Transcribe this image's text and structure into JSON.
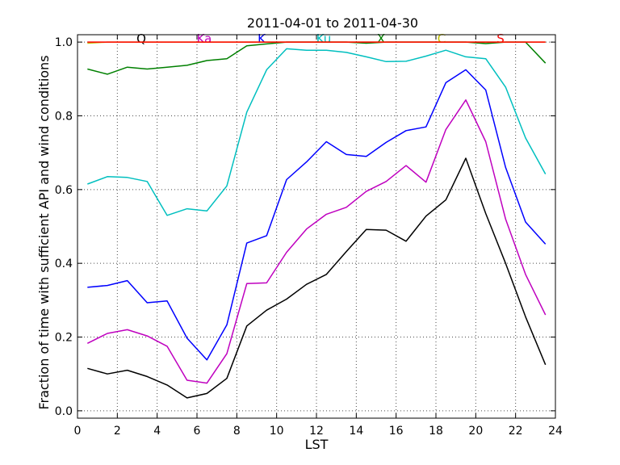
{
  "chart_data": {
    "type": "line",
    "title": "2011-04-01 to 2011-04-30",
    "xlabel": "LST",
    "ylabel": "Fraction of time with sufficient API and wind conditions",
    "xlim": [
      0,
      24
    ],
    "ylim": [
      -0.02,
      1.02
    ],
    "xticks": [
      0,
      2,
      4,
      6,
      8,
      10,
      12,
      14,
      16,
      18,
      20,
      22,
      24
    ],
    "yticks": [
      0.0,
      0.2,
      0.4,
      0.6,
      0.8,
      1.0
    ],
    "grid": true,
    "legend_placement": "top",
    "x": [
      0.5,
      1.5,
      2.5,
      3.5,
      4.5,
      5.5,
      6.5,
      7.5,
      8.5,
      9.5,
      10.5,
      11.5,
      12.5,
      13.5,
      14.5,
      15.5,
      16.5,
      17.5,
      18.5,
      19.5,
      20.5,
      21.5,
      22.5,
      23.5
    ],
    "series": [
      {
        "name": "Q",
        "color": "#000000",
        "values": [
          0.115,
          0.1,
          0.11,
          0.093,
          0.07,
          0.035,
          0.047,
          0.088,
          0.23,
          0.273,
          0.303,
          0.343,
          0.37,
          0.432,
          0.492,
          0.49,
          0.46,
          0.528,
          0.572,
          0.685,
          0.535,
          0.4,
          0.255,
          0.125
        ]
      },
      {
        "name": "Ka",
        "color": "#bf00bf",
        "values": [
          0.183,
          0.21,
          0.22,
          0.203,
          0.175,
          0.083,
          0.075,
          0.155,
          0.345,
          0.347,
          0.43,
          0.493,
          0.533,
          0.552,
          0.595,
          0.622,
          0.665,
          0.62,
          0.763,
          0.843,
          0.73,
          0.52,
          0.37,
          0.26
        ]
      },
      {
        "name": "K",
        "color": "#0000ff",
        "values": [
          0.335,
          0.34,
          0.353,
          0.293,
          0.298,
          0.197,
          0.138,
          0.233,
          0.455,
          0.475,
          0.627,
          0.675,
          0.73,
          0.695,
          0.69,
          0.728,
          0.76,
          0.77,
          0.89,
          0.925,
          0.87,
          0.66,
          0.512,
          0.452
        ]
      },
      {
        "name": "Ku",
        "color": "#00bfbf",
        "values": [
          0.615,
          0.635,
          0.633,
          0.622,
          0.53,
          0.548,
          0.542,
          0.61,
          0.81,
          0.925,
          0.982,
          0.978,
          0.978,
          0.972,
          0.96,
          0.947,
          0.948,
          0.962,
          0.978,
          0.96,
          0.955,
          0.878,
          0.74,
          0.642
        ]
      },
      {
        "name": "X",
        "color": "#008000",
        "values": [
          0.927,
          0.913,
          0.932,
          0.927,
          0.932,
          0.937,
          0.95,
          0.955,
          0.99,
          0.995,
          1.0,
          1.0,
          1.0,
          1.0,
          0.997,
          1.0,
          1.0,
          1.0,
          1.0,
          1.0,
          0.996,
          1.0,
          1.0,
          0.943
        ]
      },
      {
        "name": "C",
        "color": "#bfbf00",
        "values": [
          0.997,
          1.0,
          1.0,
          1.0,
          1.0,
          1.0,
          1.0,
          1.0,
          1.0,
          1.0,
          1.0,
          1.0,
          1.0,
          1.0,
          1.0,
          1.0,
          1.0,
          1.0,
          1.0,
          1.0,
          1.0,
          1.0,
          1.0,
          1.0
        ]
      },
      {
        "name": "S",
        "color": "#ff0000",
        "values": [
          1.0,
          1.0,
          1.0,
          1.0,
          1.0,
          1.0,
          1.0,
          1.0,
          1.0,
          1.0,
          1.0,
          1.0,
          1.0,
          1.0,
          1.0,
          1.0,
          1.0,
          1.0,
          1.0,
          1.0,
          1.0,
          1.0,
          1.0,
          1.0
        ]
      }
    ]
  }
}
